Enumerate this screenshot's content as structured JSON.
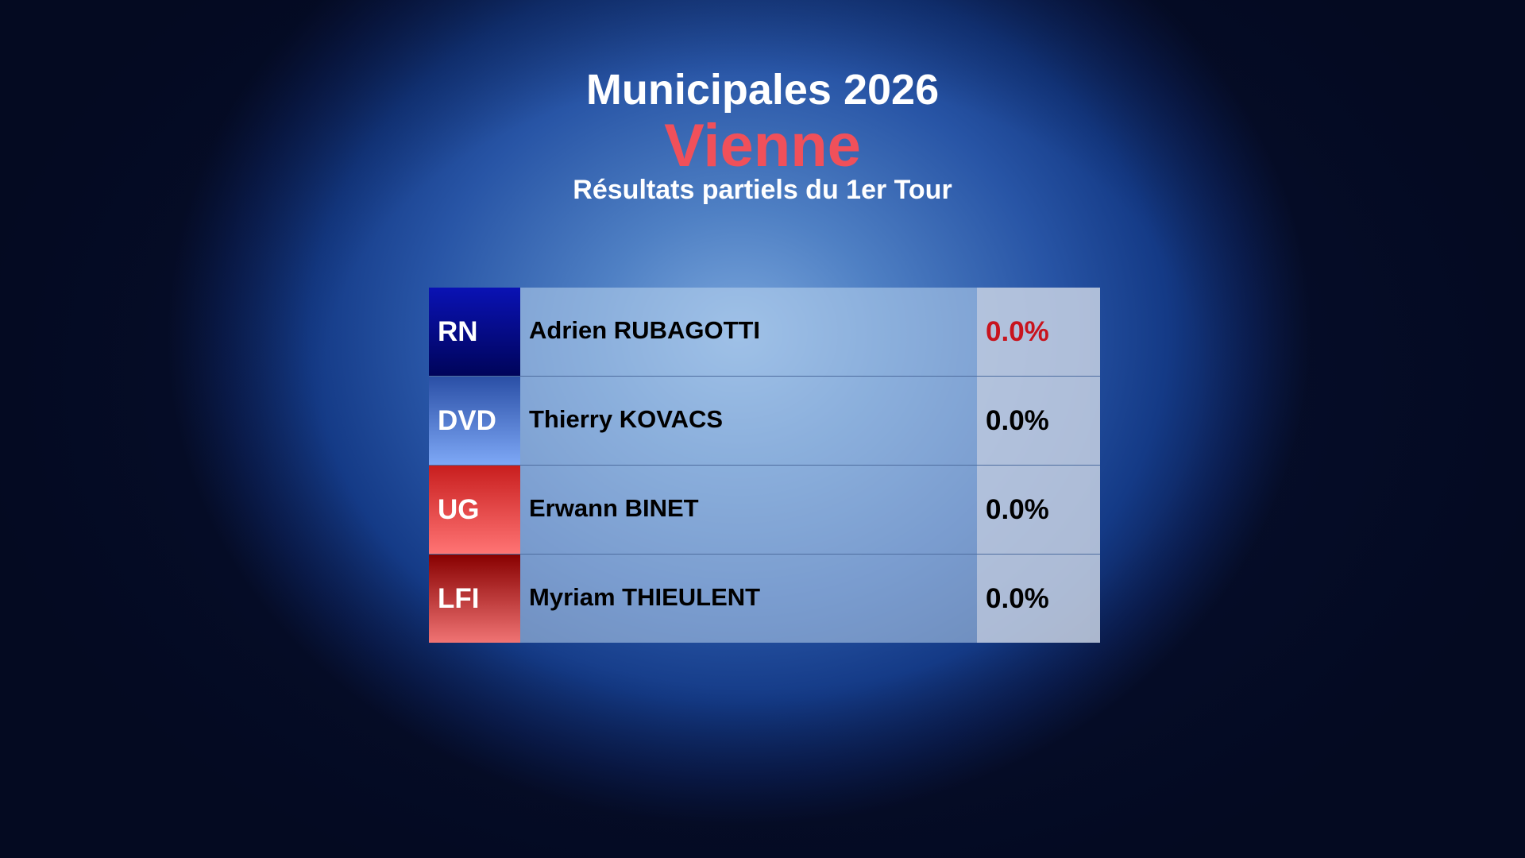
{
  "header": {
    "title": "Municipales 2026",
    "city": "Vienne",
    "subtitle": "Résultats partiels du 1er Tour"
  },
  "colors": {
    "city": "#f0505a",
    "leader_pct": "#c8141e"
  },
  "results": [
    {
      "party": "RN",
      "candidate": "Adrien RUBAGOTTI",
      "percent": "0.0%",
      "party_color": [
        "#0a12b4",
        "#00045a"
      ]
    },
    {
      "party": "DVD",
      "candidate": "Thierry KOVACS",
      "percent": "0.0%",
      "party_color": [
        "#2a4fa6",
        "#7ea8f6"
      ]
    },
    {
      "party": "UG",
      "candidate": "Erwann BINET",
      "percent": "0.0%",
      "party_color": [
        "#c81e1e",
        "#ff7474"
      ]
    },
    {
      "party": "LFI",
      "candidate": "Myriam THIEULENT",
      "percent": "0.0%",
      "party_color": [
        "#880000",
        "#f07474"
      ]
    }
  ]
}
